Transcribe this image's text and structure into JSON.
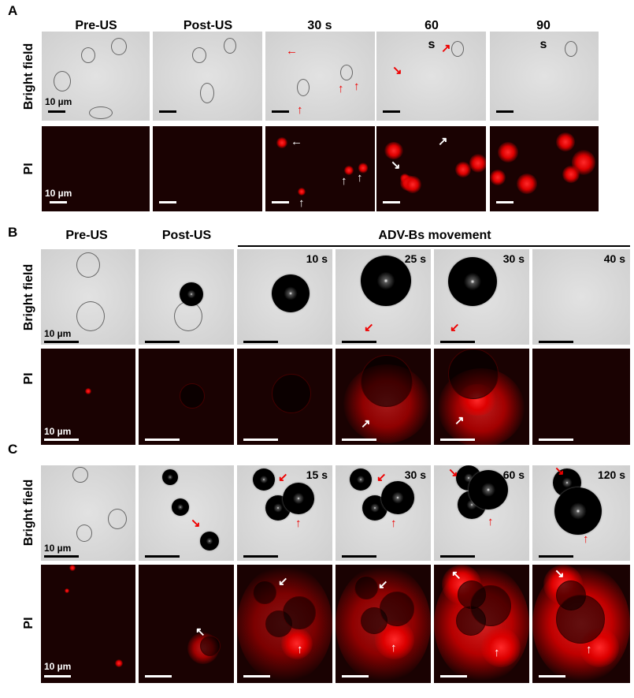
{
  "panels": {
    "A": {
      "label": "A",
      "headers": [
        "Pre-US",
        "Post-US",
        "30 s",
        "60",
        "90"
      ],
      "extra_s": "s",
      "rows": [
        "Bright field",
        "PI"
      ],
      "scale": "10 µm"
    },
    "B": {
      "label": "B",
      "headers": [
        "Pre-US",
        "Post-US"
      ],
      "group_header": "ADV-Bs movement",
      "times": [
        "10 s",
        "25 s",
        "30 s",
        "40 s"
      ],
      "rows": [
        "Bright field",
        "PI"
      ],
      "scale": "10 µm"
    },
    "C": {
      "label": "C",
      "times": [
        "15 s",
        "30 s",
        "60 s",
        "120 s"
      ],
      "rows": [
        "Bright field",
        "PI"
      ],
      "scale": "10 µm"
    }
  },
  "colors": {
    "fluorescence": "#e00000",
    "arrow_red": "#e00000",
    "arrow_white": "#ffffff",
    "pi_background": "#1a0202"
  }
}
